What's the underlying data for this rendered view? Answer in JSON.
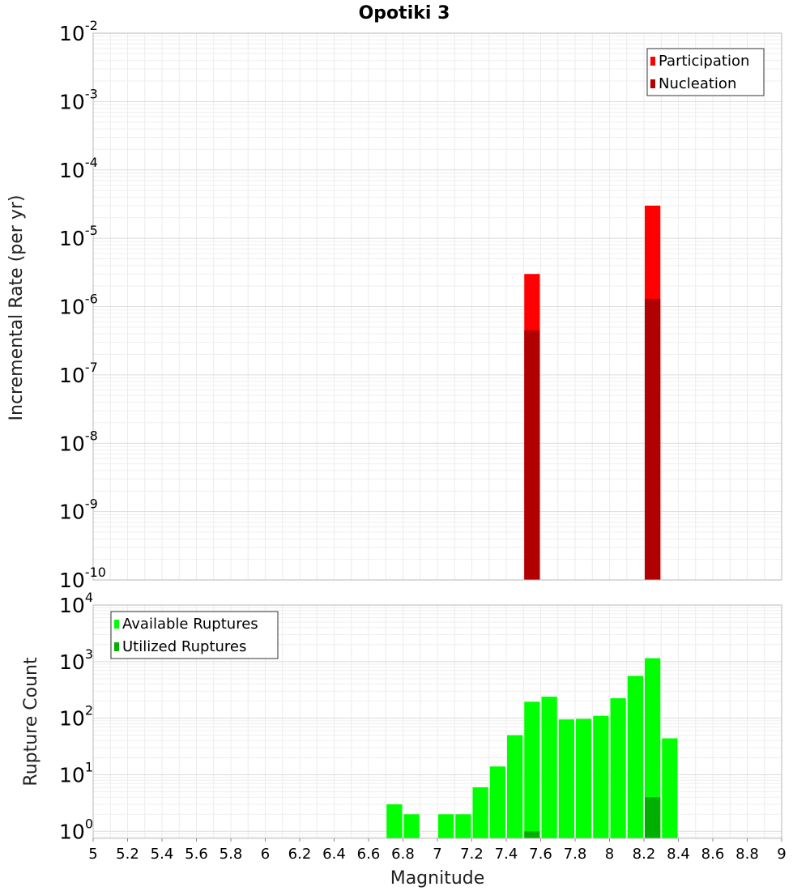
{
  "title": "Opotiki 3",
  "chart_data": [
    {
      "type": "bar",
      "id": "rate",
      "ylabel": "Incremental Rate (per yr)",
      "xlim": [
        5,
        9
      ],
      "ylim": [
        1e-10,
        0.01
      ],
      "yscale": "log",
      "bin_width": 0.1,
      "ytick_exponents": [
        -10,
        -9,
        -8,
        -7,
        -6,
        -5,
        -4,
        -3,
        -2
      ],
      "grid": true,
      "legend_position": "top-right",
      "series": [
        {
          "name": "Participation",
          "color": "#ff0000",
          "points": [
            {
              "x": 7.55,
              "y": 3e-06
            },
            {
              "x": 8.25,
              "y": 3e-05
            }
          ]
        },
        {
          "name": "Nucleation",
          "color": "#b00000",
          "points": [
            {
              "x": 7.55,
              "y": 4.5e-07
            },
            {
              "x": 8.25,
              "y": 1.3e-06
            }
          ]
        }
      ]
    },
    {
      "type": "bar",
      "id": "count",
      "ylabel": "Rupture Count",
      "xlabel": "Magnitude",
      "xlim": [
        5,
        9
      ],
      "ylim": [
        0.75,
        10000
      ],
      "yscale": "log",
      "bin_width": 0.1,
      "ytick_exponents": [
        0,
        1,
        2,
        3,
        4
      ],
      "xticks": [
        "5",
        "5.2",
        "5.4",
        "5.6",
        "5.8",
        "6",
        "6.2",
        "6.4",
        "6.6",
        "6.8",
        "7",
        "7.2",
        "7.4",
        "7.6",
        "7.8",
        "8",
        "8.2",
        "8.4",
        "8.6",
        "8.8",
        "9"
      ],
      "grid": true,
      "legend_position": "top-left",
      "series": [
        {
          "name": "Available Ruptures",
          "color": "#00ff00",
          "points": [
            {
              "x": 6.75,
              "y": 3
            },
            {
              "x": 6.85,
              "y": 2
            },
            {
              "x": 7.05,
              "y": 2
            },
            {
              "x": 7.15,
              "y": 2
            },
            {
              "x": 7.25,
              "y": 6
            },
            {
              "x": 7.35,
              "y": 14
            },
            {
              "x": 7.45,
              "y": 50
            },
            {
              "x": 7.55,
              "y": 195
            },
            {
              "x": 7.65,
              "y": 240
            },
            {
              "x": 7.75,
              "y": 95
            },
            {
              "x": 7.85,
              "y": 97
            },
            {
              "x": 7.95,
              "y": 110
            },
            {
              "x": 8.05,
              "y": 225
            },
            {
              "x": 8.15,
              "y": 560
            },
            {
              "x": 8.25,
              "y": 1150
            },
            {
              "x": 8.35,
              "y": 44
            }
          ]
        },
        {
          "name": "Utilized Ruptures",
          "color": "#00b000",
          "points": [
            {
              "x": 7.55,
              "y": 1
            },
            {
              "x": 8.25,
              "y": 4
            }
          ]
        }
      ]
    }
  ]
}
